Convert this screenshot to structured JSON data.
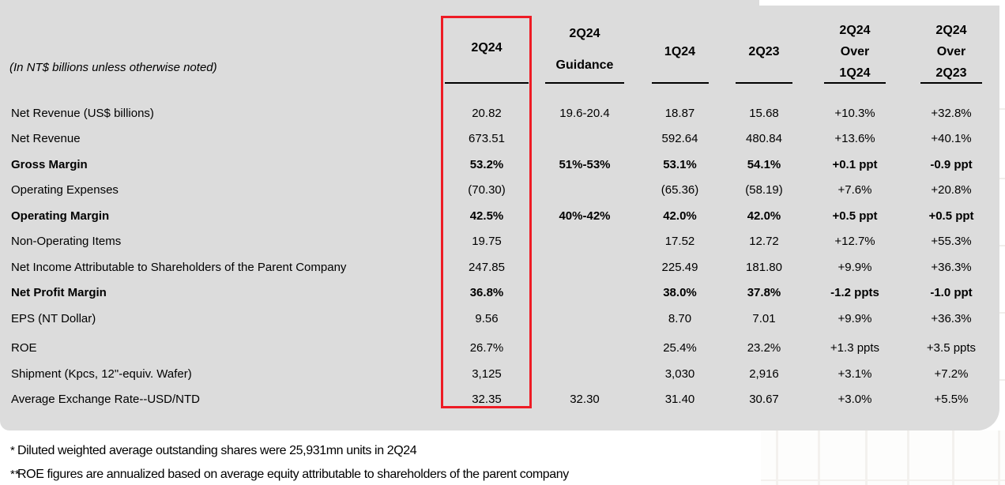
{
  "panel": {
    "background_color": "#dcdcdc",
    "highlight_color": "#ee1c25"
  },
  "units_note": "(In NT$ billions unless otherwise noted)",
  "table": {
    "columns": [
      {
        "id": "q2_24",
        "lines": [
          "2Q24"
        ],
        "highlighted": true
      },
      {
        "id": "q2_24_guidance",
        "lines": [
          "2Q24",
          "Guidance"
        ],
        "highlighted": false
      },
      {
        "id": "q1_24",
        "lines": [
          "1Q24"
        ],
        "highlighted": false
      },
      {
        "id": "q2_23",
        "lines": [
          "2Q23"
        ],
        "highlighted": false
      },
      {
        "id": "q2_24_over_1q24",
        "lines": [
          "2Q24",
          "Over",
          "1Q24"
        ],
        "highlighted": false
      },
      {
        "id": "q2_24_over_2q23",
        "lines": [
          "2Q24",
          "Over",
          "2Q23"
        ],
        "highlighted": false
      }
    ],
    "rows": [
      {
        "label": "Net Revenue (US$ billions)",
        "values": [
          "20.82",
          "19.6-20.4",
          "18.87",
          "15.68",
          "+10.3%",
          "+32.8%"
        ],
        "bold": false,
        "extra_gap": false
      },
      {
        "label": "Net Revenue",
        "values": [
          "673.51",
          "",
          "592.64",
          "480.84",
          "+13.6%",
          "+40.1%"
        ],
        "bold": false,
        "extra_gap": false
      },
      {
        "label": "Gross Margin",
        "values": [
          "53.2%",
          "51%-53%",
          "53.1%",
          "54.1%",
          "+0.1 ppt",
          "-0.9 ppt"
        ],
        "bold": true,
        "extra_gap": false
      },
      {
        "label": "Operating Expenses",
        "values": [
          "(70.30)",
          "",
          "(65.36)",
          "(58.19)",
          "+7.6%",
          "+20.8%"
        ],
        "bold": false,
        "extra_gap": false
      },
      {
        "label": "Operating Margin",
        "values": [
          "42.5%",
          "40%-42%",
          "42.0%",
          "42.0%",
          "+0.5 ppt",
          "+0.5 ppt"
        ],
        "bold": true,
        "extra_gap": false
      },
      {
        "label": "Non-Operating Items",
        "values": [
          "19.75",
          "",
          "17.52",
          "12.72",
          "+12.7%",
          "+55.3%"
        ],
        "bold": false,
        "extra_gap": false
      },
      {
        "label": "Net Income Attributable to Shareholders of the Parent Company",
        "values": [
          "247.85",
          "",
          "225.49",
          "181.80",
          "+9.9%",
          "+36.3%"
        ],
        "bold": false,
        "extra_gap": false
      },
      {
        "label": "Net Profit Margin",
        "values": [
          "36.8%",
          "",
          "38.0%",
          "37.8%",
          "-1.2 ppts",
          "-1.0 ppt"
        ],
        "bold": true,
        "extra_gap": false
      },
      {
        "label": "EPS (NT Dollar)",
        "values": [
          "9.56",
          "",
          "8.70",
          "7.01",
          "+9.9%",
          "+36.3%"
        ],
        "bold": false,
        "extra_gap": false
      },
      {
        "label": "ROE",
        "values": [
          "26.7%",
          "",
          "25.4%",
          "23.2%",
          "+1.3 ppts",
          "+3.5 ppts"
        ],
        "bold": false,
        "extra_gap": true
      },
      {
        "label": "Shipment (Kpcs, 12\"-equiv. Wafer)",
        "values": [
          "3,125",
          "",
          "3,030",
          "2,916",
          "+3.1%",
          "+7.2%"
        ],
        "bold": false,
        "extra_gap": false
      },
      {
        "label": "Average Exchange Rate--USD/NTD",
        "values": [
          "32.35",
          "32.30",
          "31.40",
          "30.67",
          "+3.0%",
          "+5.5%"
        ],
        "bold": false,
        "extra_gap": false
      }
    ]
  },
  "footnotes": [
    {
      "marker": "*",
      "text": "Diluted weighted average outstanding shares were 25,931mn units in 2Q24"
    },
    {
      "marker": "**",
      "text": "ROE figures are annualized based on average equity attributable to shareholders of the parent company"
    }
  ]
}
